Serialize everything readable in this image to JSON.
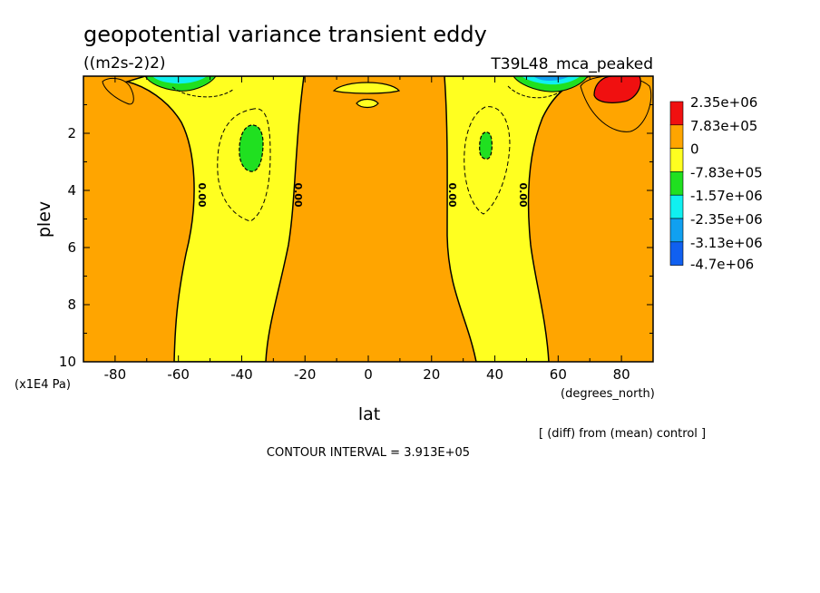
{
  "title": "geopotential variance transient eddy",
  "units": "((m2s-2)2)",
  "experiment": "T39L48_mca_peaked",
  "y_unit_label": "(x1E4 Pa)",
  "x_unit_label": "(degrees_north)",
  "note": "[ (diff) from (mean) control ]",
  "contour_interval": "CONTOUR INTERVAL = 3.913E+05",
  "contour_label": "0.00",
  "colors": {
    "red": "#f01010",
    "orange": "#ffa500",
    "yellow": "#ffff20",
    "green": "#20e020",
    "cyan": "#10f0f0",
    "lightblue": "#10a0f0",
    "blue": "#1060f0"
  },
  "chart_data": {
    "type": "heatmap",
    "xlabel": "lat",
    "ylabel": "plev",
    "xlim": [
      -90,
      90
    ],
    "ylim": [
      0,
      10
    ],
    "y_inverted": true,
    "xticks": [
      "-80",
      "-60",
      "-40",
      "-20",
      "0",
      "20",
      "40",
      "60",
      "80"
    ],
    "yticks": [
      "2",
      "4",
      "6",
      "8",
      "10"
    ],
    "legend": {
      "placement": "right",
      "levels": [
        "2.35e+06",
        "7.83e+05",
        "0",
        "-7.83e+05",
        "-1.57e+06",
        "-2.35e+06",
        "-3.13e+06",
        "-4.7e+06"
      ],
      "colors": [
        "#f01010",
        "#ffa500",
        "#ffff20",
        "#20e020",
        "#10f0f0",
        "#10a0f0",
        "#1060f0"
      ]
    },
    "features": [
      {
        "region": "southern midlatitude column",
        "lat_range": [
          -58,
          -22
        ],
        "sign": "negative",
        "min_level": "-1.57e+06",
        "center": [
          -37,
          2.6
        ]
      },
      {
        "region": "northern midlatitude column",
        "lat_range": [
          24,
          56
        ],
        "sign": "negative",
        "min_level": "-1.57e+06",
        "center": [
          36,
          2.5
        ]
      },
      {
        "region": "north polar upper level",
        "lat_range": [
          70,
          84
        ],
        "sign": "positive",
        "max_level": "2.35e+06",
        "center": [
          76,
          0.3
        ]
      }
    ]
  }
}
